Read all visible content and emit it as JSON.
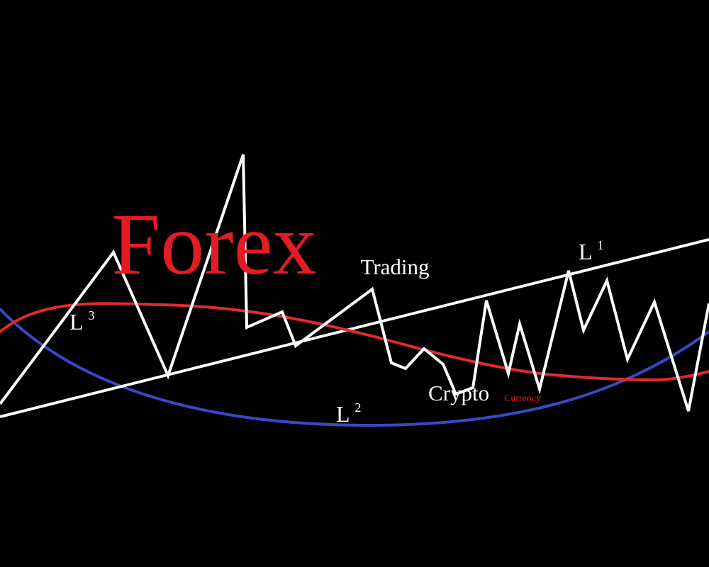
{
  "title": "Forex",
  "subtitle": "Trading",
  "caption": "Crypto",
  "caption_small": "Currency",
  "labels": {
    "l1_base": "L",
    "l1_sup": "1",
    "l2_base": "L",
    "l2_sup": "2",
    "l3_base": "L",
    "l3_sup": "3"
  },
  "colors": {
    "background": "#000000",
    "title": "#e31b23",
    "price_line": "#ffffff",
    "trend_line": "#ffffff",
    "curve_red": "#e32a2a",
    "curve_blue": "#3a48c8",
    "text_white": "#ffffff",
    "caption_small": "#e31b23"
  }
}
